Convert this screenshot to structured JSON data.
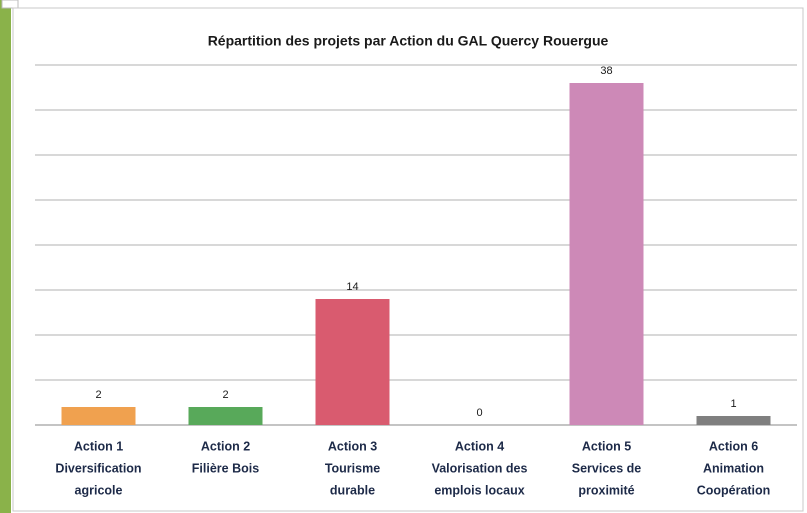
{
  "chart_data": {
    "type": "bar",
    "title": "Répartition des projets par Action du GAL Quercy Rouergue",
    "categories": [
      [
        "Action 1",
        "Diversification",
        "agricole"
      ],
      [
        "Action 2",
        "Filière Bois"
      ],
      [
        "Action 3",
        "Tourisme",
        "durable"
      ],
      [
        "Action 4",
        "Valorisation des",
        "emplois locaux"
      ],
      [
        "Action 5",
        "Services de",
        "proximité"
      ],
      [
        "Action 6",
        "Animation",
        "Coopération"
      ]
    ],
    "values": [
      2,
      2,
      14,
      0,
      38,
      1
    ],
    "colors": [
      "#f0a14f",
      "#58a95a",
      "#d95b6f",
      "#9e9e9e",
      "#cd89b7",
      "#7f7f7f"
    ],
    "ylim": [
      0,
      40
    ],
    "yticks": [
      0,
      5,
      10,
      15,
      20,
      25,
      30,
      35,
      40
    ],
    "grid": true
  }
}
